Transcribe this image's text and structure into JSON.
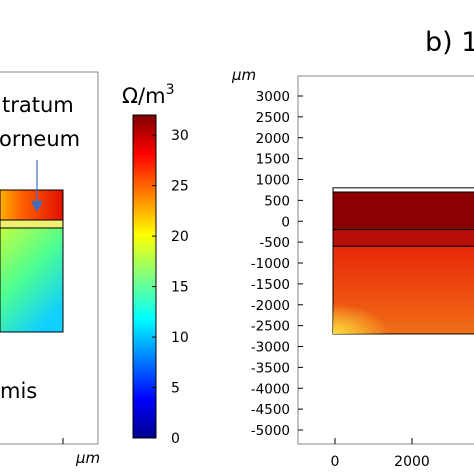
{
  "chart_data": [
    {
      "type": "heatmap",
      "panel": "a",
      "annotations": [
        "tratum",
        "orneum",
        "mis"
      ],
      "x_unit": "µm",
      "colorbar": {
        "title_base": "Ω/m",
        "title_exp": "3",
        "ticks": [
          "0",
          "5",
          "10",
          "15",
          "20",
          "25",
          "30"
        ],
        "range": [
          0,
          32
        ],
        "colormap": "jet"
      }
    },
    {
      "type": "heatmap",
      "panel": "b",
      "panel_label": "b) 1",
      "y_unit": "µm",
      "yticks": [
        "3000",
        "2500",
        "2000",
        "1500",
        "1000",
        "500",
        "0",
        "-500",
        "-1000",
        "-1500",
        "-2000",
        "-2500",
        "-3000",
        "-3500",
        "-4000",
        "-4500",
        "-5000"
      ],
      "yrange": [
        -5000,
        3000
      ],
      "xticks": [
        "0",
        "2000"
      ],
      "layers": [
        {
          "top": 700,
          "bottom": -200,
          "value": 32
        },
        {
          "top": -200,
          "bottom": -600,
          "value": 30
        },
        {
          "top": -600,
          "bottom": -2700,
          "value": 27
        }
      ]
    }
  ],
  "colors": {
    "jet_stops": [
      "#00008b",
      "#0000ff",
      "#00ffff",
      "#80ff80",
      "#ffff00",
      "#ff0000",
      "#7f0000"
    ],
    "panel_b_layer1": "#8b0000",
    "panel_b_layer2": "#b81008",
    "panel_b_layer3_top": "#e8300a",
    "panel_b_layer3_bottom": "#f0a020"
  }
}
